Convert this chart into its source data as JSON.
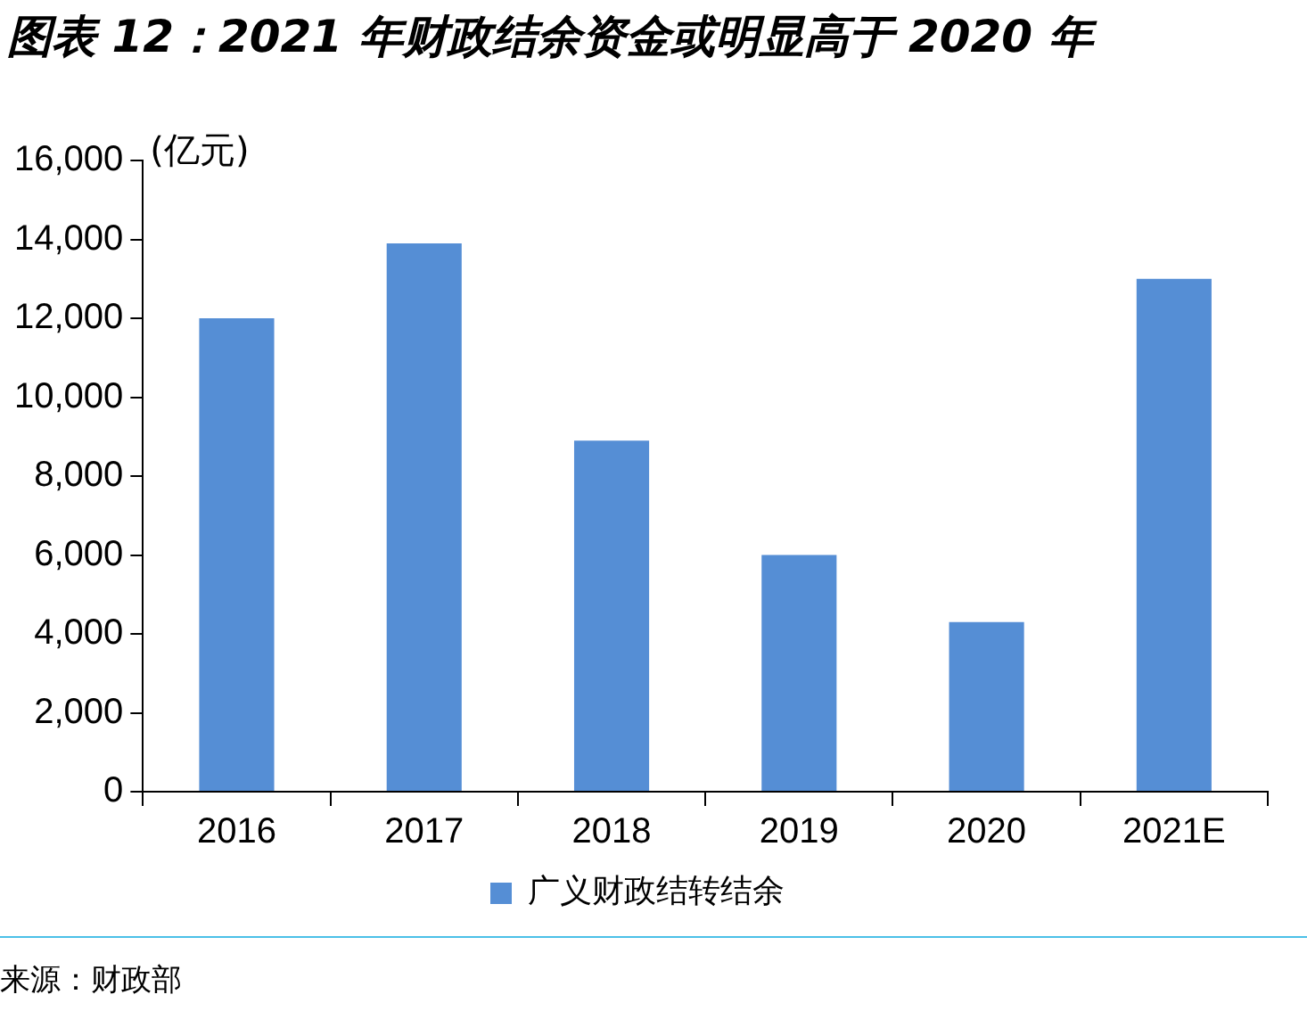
{
  "chart_data": {
    "type": "bar",
    "title": "图表 12：2021 年财政结余资金或明显高于 2020 年",
    "ylabel": "(亿元)",
    "categories": [
      "2016",
      "2017",
      "2018",
      "2019",
      "2020",
      "2021E"
    ],
    "series": [
      {
        "name": "广义财政结转结余",
        "color": "#558ed5",
        "values": [
          12000,
          13900,
          8900,
          6000,
          4300,
          13000
        ]
      }
    ],
    "ylim": [
      0,
      16000
    ],
    "yticks": [
      {
        "value": 0,
        "label": "0"
      },
      {
        "value": 2000,
        "label": "2,000"
      },
      {
        "value": 4000,
        "label": "4,000"
      },
      {
        "value": 6000,
        "label": "6,000"
      },
      {
        "value": 8000,
        "label": "8,000"
      },
      {
        "value": 10000,
        "label": "10,000"
      },
      {
        "value": 12000,
        "label": "12,000"
      },
      {
        "value": 14000,
        "label": "14,000"
      },
      {
        "value": 16000,
        "label": "16,000"
      }
    ],
    "grid": false,
    "legend": "bottom",
    "annotations": [
      "来源：财政部"
    ]
  }
}
